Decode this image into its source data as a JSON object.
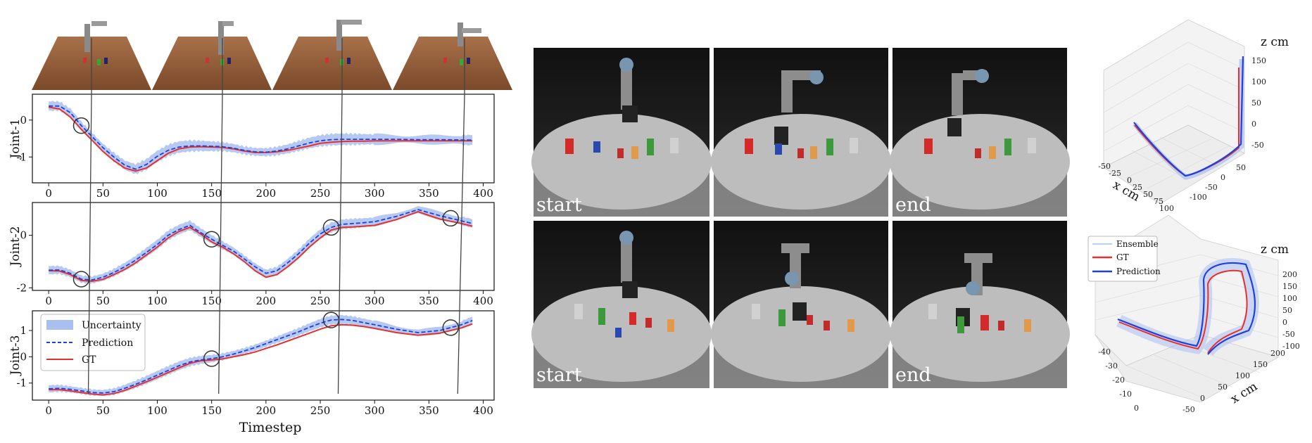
{
  "chart_data": [
    {
      "type": "line",
      "ylabel": "Joint-1",
      "xlim": [
        -15,
        410
      ],
      "ylim": [
        -1.7,
        0.7
      ],
      "yticks": [
        0,
        -1
      ],
      "xticks": [
        0,
        50,
        100,
        150,
        200,
        250,
        300,
        350,
        400
      ],
      "series": [
        {
          "name": "GT",
          "color": "#e8302b",
          "x": [
            0,
            10,
            20,
            30,
            40,
            50,
            60,
            70,
            80,
            90,
            100,
            110,
            120,
            130,
            140,
            150,
            160,
            170,
            180,
            190,
            200,
            210,
            220,
            230,
            240,
            250,
            260,
            270,
            280,
            290,
            300,
            320,
            340,
            360,
            380,
            390
          ],
          "values": [
            0.35,
            0.3,
            0.08,
            -0.25,
            -0.55,
            -0.85,
            -1.1,
            -1.3,
            -1.38,
            -1.3,
            -1.1,
            -0.9,
            -0.78,
            -0.73,
            -0.72,
            -0.73,
            -0.74,
            -0.78,
            -0.84,
            -0.88,
            -0.88,
            -0.86,
            -0.82,
            -0.76,
            -0.7,
            -0.63,
            -0.6,
            -0.58,
            -0.57,
            -0.57,
            -0.56,
            -0.56,
            -0.56,
            -0.56,
            -0.56,
            -0.56
          ]
        },
        {
          "name": "Prediction",
          "color": "#1f3fe0",
          "x": [
            0,
            10,
            20,
            30,
            40,
            50,
            60,
            70,
            80,
            90,
            100,
            110,
            120,
            130,
            140,
            150,
            160,
            170,
            180,
            190,
            200,
            210,
            220,
            230,
            240,
            250,
            260,
            270,
            280,
            290,
            300,
            320,
            340,
            360,
            380,
            390
          ],
          "values": [
            0.38,
            0.38,
            0.2,
            -0.15,
            -0.45,
            -0.75,
            -1.0,
            -1.22,
            -1.33,
            -1.2,
            -0.98,
            -0.82,
            -0.73,
            -0.7,
            -0.7,
            -0.71,
            -0.72,
            -0.76,
            -0.82,
            -0.86,
            -0.87,
            -0.84,
            -0.78,
            -0.7,
            -0.62,
            -0.56,
            -0.53,
            -0.52,
            -0.52,
            -0.52,
            -0.52,
            -0.52,
            -0.53,
            -0.53,
            -0.54,
            -0.54
          ]
        },
        {
          "name": "Uncertainty",
          "color": "#a9bff0",
          "band": 0.13
        }
      ]
    },
    {
      "type": "line",
      "ylabel": "Joint-2",
      "xlim": [
        -15,
        410
      ],
      "ylim": [
        -2.1,
        1.25
      ],
      "yticks": [
        0,
        -2
      ],
      "xticks": [
        0,
        50,
        100,
        150,
        200,
        250,
        300,
        350,
        400
      ],
      "series": [
        {
          "name": "GT",
          "color": "#e8302b",
          "x": [
            0,
            10,
            20,
            30,
            40,
            50,
            60,
            70,
            80,
            90,
            100,
            110,
            120,
            130,
            140,
            150,
            160,
            170,
            180,
            190,
            200,
            210,
            220,
            230,
            240,
            250,
            260,
            270,
            280,
            290,
            300,
            320,
            340,
            360,
            380,
            390
          ],
          "values": [
            -1.35,
            -1.36,
            -1.5,
            -1.72,
            -1.75,
            -1.68,
            -1.5,
            -1.3,
            -1.05,
            -0.75,
            -0.45,
            -0.1,
            0.15,
            0.3,
            0.05,
            -0.25,
            -0.45,
            -0.7,
            -1.0,
            -1.35,
            -1.6,
            -1.5,
            -1.2,
            -0.85,
            -0.45,
            -0.1,
            0.2,
            0.3,
            0.32,
            0.35,
            0.38,
            0.6,
            0.9,
            0.62,
            0.45,
            0.35
          ]
        },
        {
          "name": "Prediction",
          "color": "#1f3fe0",
          "x": [
            0,
            10,
            20,
            30,
            40,
            50,
            60,
            70,
            80,
            90,
            100,
            110,
            120,
            130,
            140,
            150,
            160,
            170,
            180,
            190,
            200,
            210,
            220,
            230,
            240,
            250,
            260,
            270,
            280,
            290,
            300,
            320,
            340,
            360,
            380,
            390
          ],
          "values": [
            -1.33,
            -1.32,
            -1.45,
            -1.67,
            -1.7,
            -1.6,
            -1.42,
            -1.2,
            -0.95,
            -0.65,
            -0.35,
            0.0,
            0.22,
            0.38,
            0.1,
            -0.15,
            -0.38,
            -0.6,
            -0.9,
            -1.2,
            -1.45,
            -1.35,
            -1.05,
            -0.7,
            -0.3,
            0.05,
            0.3,
            0.42,
            0.45,
            0.48,
            0.52,
            0.72,
            0.98,
            0.75,
            0.55,
            0.45
          ]
        },
        {
          "name": "Uncertainty",
          "color": "#a9bff0",
          "band": 0.16
        }
      ]
    },
    {
      "type": "line",
      "ylabel": "Joint-3",
      "xlabel": "Timestep",
      "xlim": [
        -15,
        410
      ],
      "ylim": [
        -1.65,
        1.75
      ],
      "yticks": [
        1,
        0,
        -1
      ],
      "xticks": [
        0,
        50,
        100,
        150,
        200,
        250,
        300,
        350,
        400
      ],
      "series": [
        {
          "name": "GT",
          "color": "#e8302b",
          "x": [
            0,
            10,
            20,
            30,
            40,
            50,
            60,
            70,
            80,
            90,
            100,
            110,
            120,
            130,
            140,
            150,
            160,
            170,
            180,
            190,
            200,
            210,
            220,
            230,
            240,
            250,
            260,
            270,
            280,
            290,
            300,
            320,
            340,
            360,
            380,
            390
          ],
          "values": [
            -1.25,
            -1.25,
            -1.3,
            -1.36,
            -1.42,
            -1.45,
            -1.4,
            -1.28,
            -1.12,
            -0.95,
            -0.78,
            -0.6,
            -0.42,
            -0.25,
            -0.15,
            -0.12,
            -0.08,
            0.0,
            0.08,
            0.18,
            0.32,
            0.45,
            0.6,
            0.75,
            0.9,
            1.05,
            1.18,
            1.22,
            1.2,
            1.15,
            1.08,
            0.92,
            0.82,
            0.9,
            1.1,
            1.25
          ]
        },
        {
          "name": "Prediction",
          "color": "#1f3fe0",
          "x": [
            0,
            10,
            20,
            30,
            40,
            50,
            60,
            70,
            80,
            90,
            100,
            110,
            120,
            130,
            140,
            150,
            160,
            170,
            180,
            190,
            200,
            210,
            220,
            230,
            240,
            250,
            260,
            270,
            280,
            290,
            300,
            320,
            340,
            360,
            380,
            390
          ],
          "values": [
            -1.22,
            -1.2,
            -1.24,
            -1.3,
            -1.36,
            -1.38,
            -1.33,
            -1.2,
            -1.05,
            -0.88,
            -0.7,
            -0.52,
            -0.34,
            -0.2,
            -0.12,
            -0.07,
            0.0,
            0.1,
            0.22,
            0.35,
            0.5,
            0.65,
            0.8,
            0.95,
            1.12,
            1.28,
            1.4,
            1.42,
            1.38,
            1.3,
            1.22,
            1.05,
            0.92,
            1.0,
            1.22,
            1.38
          ]
        },
        {
          "name": "Uncertainty",
          "color": "#a9bff0",
          "band": 0.14
        }
      ]
    },
    {
      "type": "line",
      "subtype": "3d",
      "zlabel": "z cm",
      "xlabel": "x cm",
      "x_ticks": [
        -50,
        -25,
        0,
        25,
        50,
        75,
        100
      ],
      "y_ticks": [
        50,
        0,
        -50,
        -100
      ],
      "z_ticks": [
        150,
        100,
        50,
        0,
        -50
      ],
      "series": [
        {
          "name": "GT",
          "color": "#e8302b"
        },
        {
          "name": "Prediction",
          "color": "#1f3fe0"
        }
      ]
    },
    {
      "type": "line",
      "subtype": "3d",
      "zlabel": "z cm",
      "xlabel": "x cm",
      "x_ticks": [
        -40,
        -30,
        -20,
        -10,
        0
      ],
      "y_ticks": [
        -50,
        0,
        50,
        100,
        150,
        200
      ],
      "z_ticks": [
        200,
        150,
        100,
        50,
        0,
        -50,
        -100
      ],
      "series": [
        {
          "name": "Ensemble",
          "color": "#a9bff0"
        },
        {
          "name": "GT",
          "color": "#e8302b"
        },
        {
          "name": "Prediction",
          "color": "#1f3fe0"
        }
      ]
    }
  ],
  "legend_joint3": {
    "uncertainty": "Uncertainty",
    "prediction": "Prediction",
    "gt": "GT"
  },
  "markers": {
    "timesteps": [
      30,
      150,
      260,
      370
    ]
  },
  "photos": {
    "row1": {
      "left": "start",
      "right": "end"
    },
    "row2": {
      "left": "start",
      "right": "end"
    }
  },
  "legend_3d": {
    "ensemble": "Ensemble",
    "gt": "GT",
    "prediction": "Prediction"
  }
}
